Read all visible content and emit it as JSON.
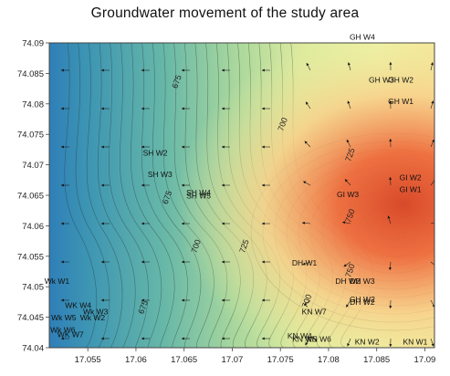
{
  "chart_data": {
    "type": "contour",
    "title": "Groundwater movement of the study area",
    "xlabel": "",
    "ylabel": "",
    "xlim": [
      17.051,
      17.091
    ],
    "ylim": [
      74.04,
      74.09
    ],
    "x_ticks": [
      "17.055",
      "17.06",
      "17.065",
      "17.07",
      "17.075",
      "17.08",
      "17.085",
      "17.09"
    ],
    "y_ticks": [
      "74.04",
      "74.045",
      "74.05",
      "74.055",
      "74.06",
      "74.065",
      "74.07",
      "74.075",
      "74.08",
      "74.085",
      "74.09"
    ],
    "contour_labels": [
      {
        "text": "675",
        "x": 17.0645,
        "y": 74.0835
      },
      {
        "text": "675",
        "x": 17.0635,
        "y": 74.0645
      },
      {
        "text": "675",
        "x": 17.061,
        "y": 74.0465
      },
      {
        "text": "700",
        "x": 17.0755,
        "y": 74.0765
      },
      {
        "text": "700",
        "x": 17.0665,
        "y": 74.0565
      },
      {
        "text": "700",
        "x": 17.078,
        "y": 74.0475
      },
      {
        "text": "725",
        "x": 17.0825,
        "y": 74.0715
      },
      {
        "text": "725",
        "x": 17.0715,
        "y": 74.0565
      },
      {
        "text": "750",
        "x": 17.0825,
        "y": 74.0615
      },
      {
        "text": "750",
        "x": 17.0825,
        "y": 74.0525
      }
    ],
    "wells": [
      {
        "name": "GH W4",
        "x": 17.0835,
        "y": 74.0905
      },
      {
        "name": "GH W3",
        "x": 17.0855,
        "y": 74.0835
      },
      {
        "name": "GH W2",
        "x": 17.0875,
        "y": 74.0835
      },
      {
        "name": "GH W1",
        "x": 17.0875,
        "y": 74.08
      },
      {
        "name": "SH W2",
        "x": 17.062,
        "y": 74.0715
      },
      {
        "name": "SH W3",
        "x": 17.0625,
        "y": 74.068
      },
      {
        "name": "SH W4",
        "x": 17.0665,
        "y": 74.065
      },
      {
        "name": "SH W5",
        "x": 17.0665,
        "y": 74.0645
      },
      {
        "name": "GI W2",
        "x": 17.0885,
        "y": 74.0675
      },
      {
        "name": "GI W3",
        "x": 17.082,
        "y": 74.0647
      },
      {
        "name": "GI W1",
        "x": 17.0885,
        "y": 74.0655
      },
      {
        "name": "DH W1",
        "x": 17.0775,
        "y": 74.0535
      },
      {
        "name": "DH W2",
        "x": 17.082,
        "y": 74.0505
      },
      {
        "name": "DH W3",
        "x": 17.0835,
        "y": 74.0505
      },
      {
        "name": "GH W2",
        "x": 17.0835,
        "y": 74.0475
      },
      {
        "name": "DH W2",
        "x": 17.0835,
        "y": 74.047
      },
      {
        "name": "KN W7",
        "x": 17.0785,
        "y": 74.0455
      },
      {
        "name": "KN W4",
        "x": 17.077,
        "y": 74.0415
      },
      {
        "name": "KN W5",
        "x": 17.0775,
        "y": 74.041
      },
      {
        "name": "KN W6",
        "x": 17.079,
        "y": 74.041
      },
      {
        "name": "KN W2",
        "x": 17.084,
        "y": 74.0405
      },
      {
        "name": "KN W1",
        "x": 17.089,
        "y": 74.0405
      },
      {
        "name": "Wk W1",
        "x": 17.0518,
        "y": 74.0505
      },
      {
        "name": "WK W4",
        "x": 17.054,
        "y": 74.0465
      },
      {
        "name": "Wk W3",
        "x": 17.0558,
        "y": 74.0455
      },
      {
        "name": "Wk W2",
        "x": 17.0555,
        "y": 74.0445
      },
      {
        "name": "Wk W5",
        "x": 17.0525,
        "y": 74.0445
      },
      {
        "name": "Wk W6",
        "x": 17.0524,
        "y": 74.0425
      },
      {
        "name": "WK W7",
        "x": 17.0532,
        "y": 74.0417
      }
    ],
    "colors": {
      "low": "#2f7fb8",
      "mid_low": "#7dc3a4",
      "mid": "#d9ea9f",
      "mid_high": "#f8d08a",
      "high": "#ee6a3c",
      "peak": "#d84a2a"
    }
  }
}
